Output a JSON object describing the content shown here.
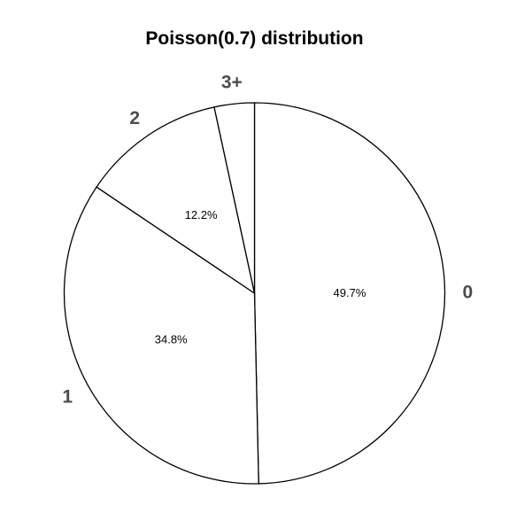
{
  "chart_data": {
    "type": "pie",
    "title": "Poisson(0.7) distribution",
    "categories": [
      "0",
      "1",
      "2",
      "3+"
    ],
    "values": [
      49.7,
      34.8,
      12.2,
      3.4
    ],
    "data_labels": [
      "49.7%",
      "34.8%",
      "12.2%",
      ""
    ],
    "slice_fill": "#ffffff",
    "border_color": "#000000",
    "label_color": "#4d4d4d",
    "legend": "none"
  }
}
